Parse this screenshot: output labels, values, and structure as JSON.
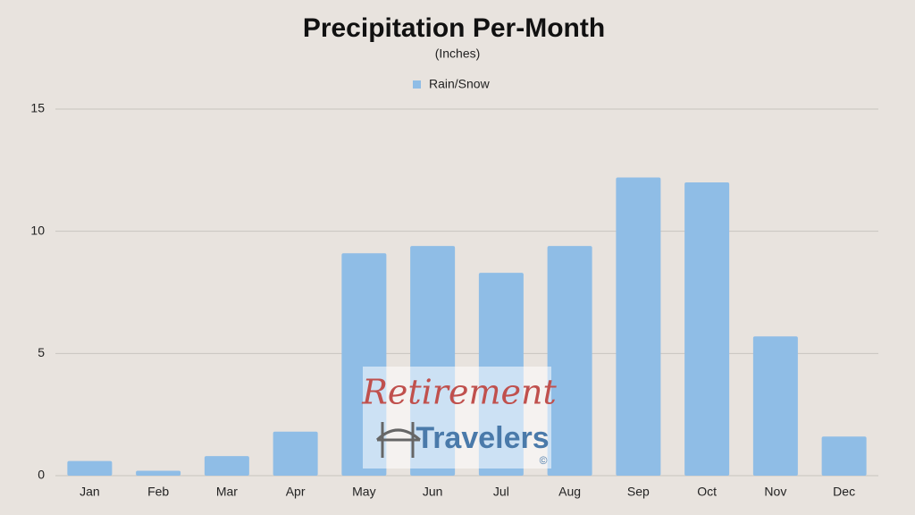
{
  "chart_data": {
    "type": "bar",
    "title": "Precipitation Per-Month",
    "subtitle": "(Inches)",
    "categories": [
      "Jan",
      "Feb",
      "Mar",
      "Apr",
      "May",
      "Jun",
      "Jul",
      "Aug",
      "Sep",
      "Oct",
      "Nov",
      "Dec"
    ],
    "series": [
      {
        "name": "Rain/Snow",
        "color": "#8fbde6",
        "values": [
          0.6,
          0.2,
          0.8,
          1.8,
          9.1,
          9.4,
          8.3,
          9.4,
          12.2,
          12.0,
          5.7,
          1.6
        ]
      }
    ],
    "ylim": [
      0,
      15
    ],
    "yticks": [
      0,
      5,
      10,
      15
    ],
    "grid": true,
    "legend": "top"
  },
  "watermark": {
    "line1": "Retirement",
    "line2": "Travelers",
    "mark": "©"
  }
}
